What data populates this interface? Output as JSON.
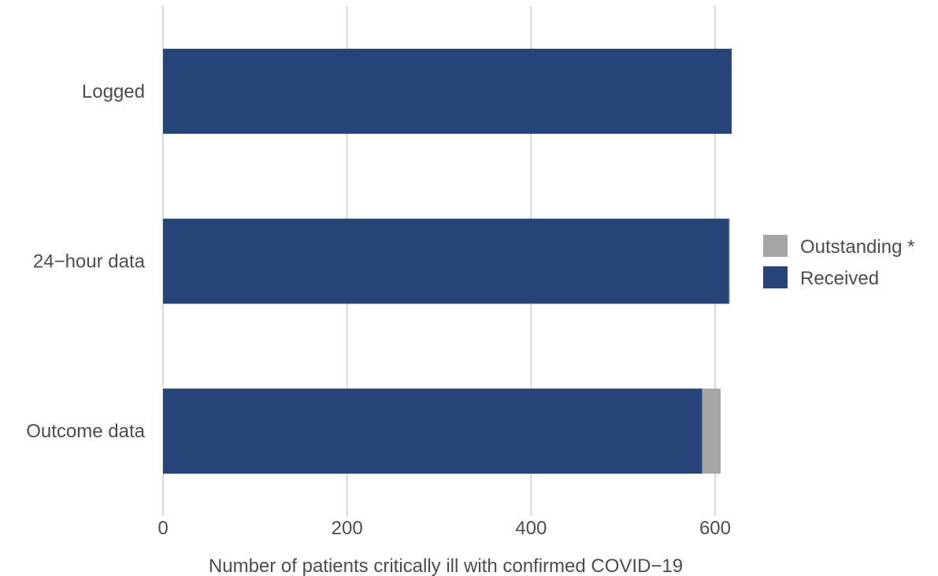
{
  "chart_data": {
    "type": "bar",
    "orientation": "horizontal",
    "stacked": true,
    "categories": [
      "Logged",
      "24−hour data",
      "Outcome data"
    ],
    "series": [
      {
        "name": "Received",
        "color": "#264478",
        "values": [
          618,
          615,
          586
        ]
      },
      {
        "name": "Outstanding *",
        "color": "#a6a6a6",
        "values": [
          0,
          1,
          20
        ]
      }
    ],
    "xlabel": "Number of patients critically ill with confirmed COVID−19",
    "ylabel": "",
    "xlim": [
      0,
      618
    ],
    "xticks": [
      0,
      200,
      400,
      600
    ],
    "grid": "vertical",
    "legend": {
      "position": "right",
      "entries": [
        {
          "label": "Outstanding *",
          "color": "#a6a6a6"
        },
        {
          "label": "Received",
          "color": "#264478"
        }
      ]
    }
  }
}
